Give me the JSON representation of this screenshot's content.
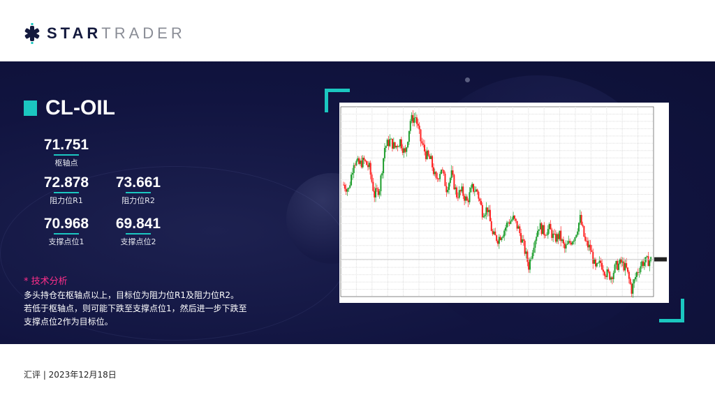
{
  "brand": {
    "bold": "STAR",
    "light": "TRADER"
  },
  "instrument": "CL-OIL",
  "levels": {
    "pivot": {
      "value": "71.751",
      "label": "枢轴点"
    },
    "r1": {
      "value": "72.878",
      "label": "阻力位R1"
    },
    "r2": {
      "value": "73.661",
      "label": "阻力位R2"
    },
    "s1": {
      "value": "70.968",
      "label": "支撑点位1"
    },
    "s2": {
      "value": "69.841",
      "label": "支撑点位2"
    }
  },
  "analysis": {
    "title": "* 技术分析",
    "lines": [
      "多头持仓在枢轴点以上，目标位为阻力位R1及阻力位R2。",
      "若低于枢轴点，则可能下跌至支撑点位1，然后进一步下跌至",
      "支撑点位2作为目标位。"
    ]
  },
  "footer": "汇评 | 2023年12月18日",
  "colors": {
    "navy": "#111440",
    "accent": "#1bc7c0",
    "highlight": "#ff2e8a",
    "up": "#1f9e2e",
    "down": "#ff2020"
  },
  "chart_data": {
    "type": "candlestick",
    "closes": [
      79.5,
      78.8,
      83,
      82.5,
      83,
      82,
      78,
      79,
      85,
      86,
      85,
      86,
      84,
      89,
      89.5,
      86,
      84,
      83,
      80,
      82,
      79,
      81,
      78,
      78.5,
      77,
      79,
      78.5,
      75.5,
      76,
      72,
      71.5,
      72.5,
      74,
      74.5,
      73,
      70.5,
      67.5,
      71,
      73.5,
      72.5,
      73,
      71.5,
      72,
      70,
      71,
      72,
      74.5,
      71,
      70,
      67,
      68,
      66.5,
      66,
      67.5,
      68,
      67,
      64,
      66.5,
      68,
      68.2,
      68.5
    ]
  }
}
